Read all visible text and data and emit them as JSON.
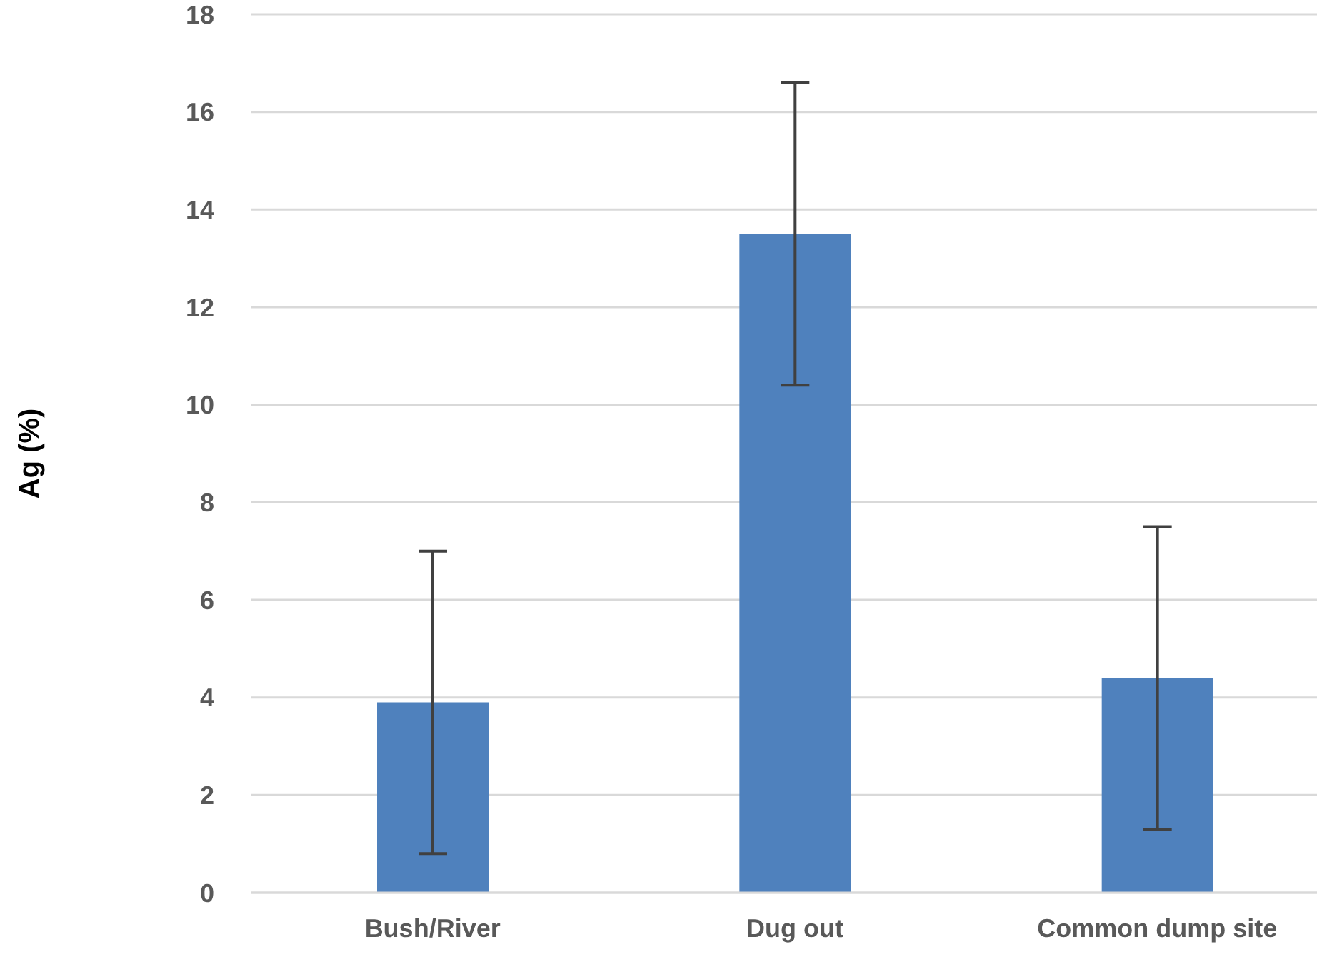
{
  "chart_data": {
    "type": "bar",
    "ylabel": "Ag (%)",
    "categories": [
      "Bush/River",
      "Dug out",
      "Common dump site"
    ],
    "values": [
      3.9,
      13.5,
      4.4
    ],
    "errors": [
      3.1,
      3.1,
      3.1
    ],
    "color": "#4f81bd",
    "ylim": [
      0,
      18
    ],
    "yticks": [
      0,
      2,
      4,
      6,
      8,
      10,
      12,
      14,
      16,
      18
    ],
    "grid": "y"
  }
}
